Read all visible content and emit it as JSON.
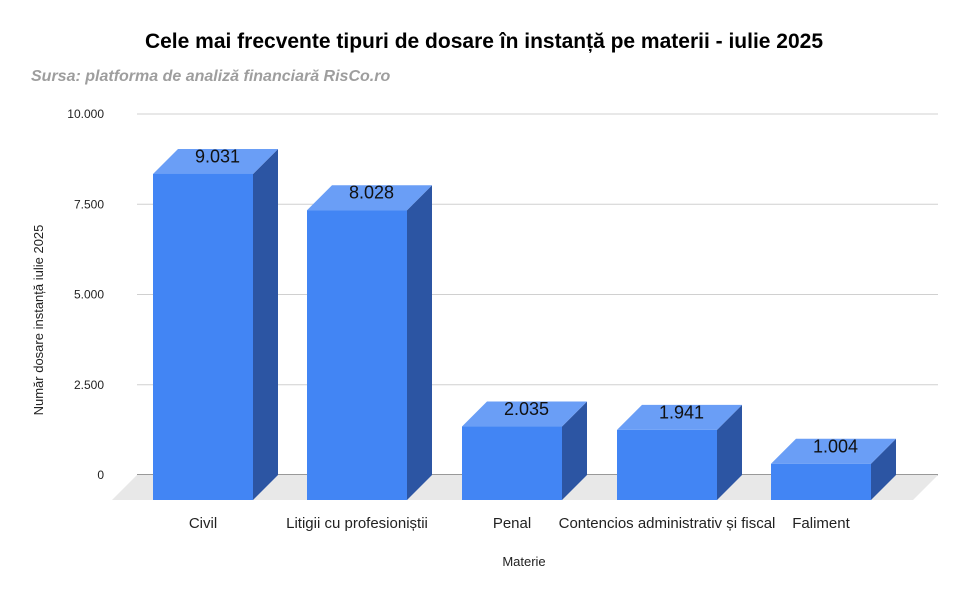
{
  "chart_data": {
    "type": "bar",
    "style": "3d",
    "title": "Cele mai frecvente tipuri de dosare în instanță pe materii - iulie 2025",
    "subtitle": "Sursa: platforma de analiză financiară RisCo.ro",
    "xlabel": "Materie",
    "ylabel": "Număr dosare instanță iulie 2025",
    "categories": [
      "Civil",
      "Litigii cu profesioniștii",
      "Penal",
      "Contencios administrativ și fiscal",
      "Faliment"
    ],
    "values": [
      9031,
      8028,
      2035,
      1941,
      1004
    ],
    "data_labels": [
      "9.031",
      "8.028",
      "2.035",
      "1.941",
      "1.004"
    ],
    "ylim": [
      0,
      10000
    ],
    "yticks": [
      0,
      2500,
      5000,
      7500,
      10000
    ],
    "ytick_labels": [
      "0",
      "2.500",
      "5.000",
      "7.500",
      "10.000"
    ],
    "grid": true,
    "legend": "none",
    "colors": {
      "bar_front": "#4285f4",
      "bar_top": "#6a9ef6",
      "bar_side": "#2c55a3",
      "floor": "#e8e8e8",
      "grid": "#d0d0d0"
    }
  }
}
